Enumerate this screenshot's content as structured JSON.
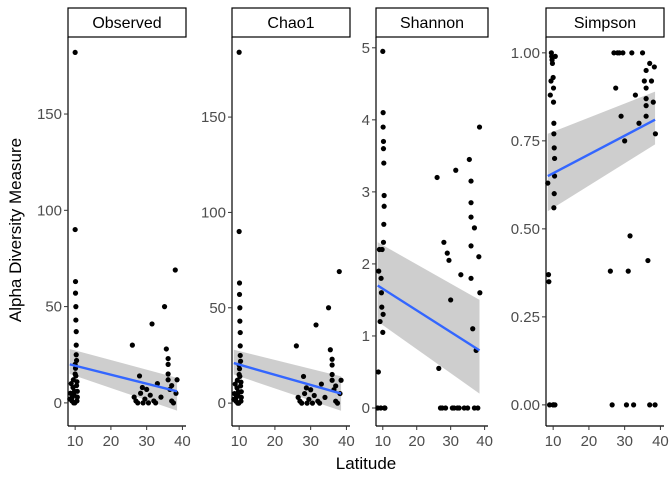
{
  "chart_data": {
    "type": "scatter",
    "xlabel": "Latitude",
    "ylabel": "Alpha Diversity Measure",
    "x_ticks": [
      "10",
      "20",
      "30",
      "40"
    ],
    "colors": {
      "points": "#000000",
      "fit_line": "#3366FF",
      "ci_band": "#bdbdbd",
      "strip_fill": "#ffffff"
    },
    "panels": [
      {
        "name": "Observed",
        "xlim": [
          8,
          41
        ],
        "ylim": [
          -12,
          190
        ],
        "y_ticks": [
          0,
          50,
          100,
          150
        ],
        "y_tick_labels": [
          "0",
          "50",
          "100",
          "150"
        ],
        "points": [
          [
            8.5,
            2
          ],
          [
            8.7,
            5
          ],
          [
            8.9,
            10
          ],
          [
            9.1,
            1
          ],
          [
            9.2,
            3
          ],
          [
            9.4,
            8
          ],
          [
            9.5,
            12
          ],
          [
            9.6,
            0
          ],
          [
            9.7,
            4
          ],
          [
            9.8,
            6
          ],
          [
            10.0,
            15
          ],
          [
            10.0,
            182
          ],
          [
            10.0,
            90
          ],
          [
            10.1,
            63
          ],
          [
            10.1,
            57
          ],
          [
            10.2,
            50
          ],
          [
            10.2,
            43
          ],
          [
            10.3,
            37
          ],
          [
            10.3,
            30
          ],
          [
            10.4,
            22
          ],
          [
            10.1,
            18
          ],
          [
            10.2,
            14
          ],
          [
            10.4,
            9
          ],
          [
            10.5,
            1
          ],
          [
            10.6,
            3
          ],
          [
            10.6,
            6
          ],
          [
            10.0,
            20
          ],
          [
            9.9,
            0
          ],
          [
            10.3,
            25
          ],
          [
            10.5,
            11
          ],
          [
            26,
            30
          ],
          [
            26.5,
            3
          ],
          [
            27,
            1
          ],
          [
            27.5,
            0
          ],
          [
            28,
            14
          ],
          [
            28.3,
            5
          ],
          [
            28.8,
            8
          ],
          [
            29,
            0
          ],
          [
            29.5,
            2
          ],
          [
            30,
            7
          ],
          [
            30.5,
            0
          ],
          [
            31,
            4
          ],
          [
            31.5,
            41
          ],
          [
            32,
            1
          ],
          [
            32.5,
            0
          ],
          [
            33,
            10
          ],
          [
            34,
            3
          ],
          [
            35,
            50
          ],
          [
            35.5,
            28
          ],
          [
            36,
            23
          ],
          [
            36,
            20
          ],
          [
            36,
            15
          ],
          [
            36,
            12
          ],
          [
            36.5,
            7
          ],
          [
            37,
            9
          ],
          [
            37,
            1
          ],
          [
            37.5,
            0
          ],
          [
            38,
            69
          ],
          [
            38.5,
            12
          ],
          [
            38.2,
            5
          ]
        ],
        "fit": {
          "x": [
            8.5,
            38.5
          ],
          "y": [
            20,
            6
          ]
        },
        "ci_band": {
          "x": [
            8.5,
            38.5
          ],
          "lower": [
            15,
            -4
          ],
          "upper": [
            28,
            13
          ]
        }
      },
      {
        "name": "Chao1",
        "xlim": [
          8,
          41
        ],
        "ylim": [
          -12,
          192
        ],
        "y_ticks": [
          0,
          50,
          100,
          150
        ],
        "y_tick_labels": [
          "0",
          "50",
          "100",
          "150"
        ],
        "points": [
          [
            8.5,
            2
          ],
          [
            8.7,
            5
          ],
          [
            8.9,
            10
          ],
          [
            9.1,
            1
          ],
          [
            9.2,
            3
          ],
          [
            9.4,
            8
          ],
          [
            9.5,
            12
          ],
          [
            9.6,
            0
          ],
          [
            9.7,
            4
          ],
          [
            9.8,
            6
          ],
          [
            10.0,
            15
          ],
          [
            10.0,
            184
          ],
          [
            10.0,
            90
          ],
          [
            10.1,
            63
          ],
          [
            10.1,
            57
          ],
          [
            10.2,
            50
          ],
          [
            10.2,
            43
          ],
          [
            10.3,
            37
          ],
          [
            10.3,
            30
          ],
          [
            10.4,
            22
          ],
          [
            10.1,
            18
          ],
          [
            10.2,
            14
          ],
          [
            10.4,
            9
          ],
          [
            10.5,
            1
          ],
          [
            10.6,
            3
          ],
          [
            10.6,
            6
          ],
          [
            10.0,
            20
          ],
          [
            9.9,
            0
          ],
          [
            10.3,
            25
          ],
          [
            10.5,
            11
          ],
          [
            26,
            30
          ],
          [
            26.5,
            3
          ],
          [
            27,
            1
          ],
          [
            27.5,
            0
          ],
          [
            28,
            14
          ],
          [
            28.3,
            5
          ],
          [
            28.8,
            8
          ],
          [
            29,
            0
          ],
          [
            29.5,
            2
          ],
          [
            30,
            7
          ],
          [
            30.5,
            0
          ],
          [
            31,
            4
          ],
          [
            31.5,
            41
          ],
          [
            32,
            1
          ],
          [
            32.5,
            0
          ],
          [
            33,
            10
          ],
          [
            34,
            3
          ],
          [
            35,
            50
          ],
          [
            35.5,
            28
          ],
          [
            36,
            23
          ],
          [
            36,
            20
          ],
          [
            36,
            15
          ],
          [
            36,
            12
          ],
          [
            36.5,
            7
          ],
          [
            37,
            9
          ],
          [
            37,
            1
          ],
          [
            37.5,
            0
          ],
          [
            38,
            69
          ],
          [
            38.5,
            12
          ],
          [
            38.2,
            5
          ]
        ],
        "fit": {
          "x": [
            8.5,
            38.5
          ],
          "y": [
            21,
            5
          ]
        },
        "ci_band": {
          "x": [
            8.5,
            38.5
          ],
          "lower": [
            15,
            -4
          ],
          "upper": [
            28,
            14
          ]
        }
      },
      {
        "name": "Shannon",
        "xlim": [
          8,
          41
        ],
        "ylim": [
          -0.25,
          5.15
        ],
        "y_ticks": [
          0,
          1,
          2,
          3,
          4,
          5
        ],
        "y_tick_labels": [
          "0",
          "1",
          "2",
          "3",
          "4",
          "5"
        ],
        "points": [
          [
            8.5,
            0
          ],
          [
            8.7,
            0.5
          ],
          [
            8.8,
            1.9
          ],
          [
            9,
            2.2
          ],
          [
            9.2,
            1.2
          ],
          [
            9.4,
            0
          ],
          [
            9.5,
            1.8
          ],
          [
            9.6,
            1.6
          ],
          [
            9.7,
            1.4
          ],
          [
            9.8,
            2.2
          ],
          [
            10,
            4.95
          ],
          [
            10.1,
            4.1
          ],
          [
            10.1,
            3.9
          ],
          [
            10.2,
            3.7
          ],
          [
            10.2,
            3.6
          ],
          [
            10.3,
            3.4
          ],
          [
            10.4,
            2.95
          ],
          [
            10.4,
            2.8
          ],
          [
            10.3,
            2.55
          ],
          [
            10.2,
            2.3
          ],
          [
            10.1,
            1.3
          ],
          [
            10,
            1.05
          ],
          [
            10.5,
            0
          ],
          [
            10.6,
            0
          ],
          [
            10.6,
            0
          ],
          [
            26,
            3.2
          ],
          [
            26.5,
            0.55
          ],
          [
            27,
            0
          ],
          [
            27.5,
            0
          ],
          [
            28,
            2.3
          ],
          [
            28.5,
            0
          ],
          [
            29,
            2.15
          ],
          [
            29.5,
            2.05
          ],
          [
            30,
            1.5
          ],
          [
            30.5,
            0
          ],
          [
            31,
            0
          ],
          [
            31.5,
            3.3
          ],
          [
            32,
            0
          ],
          [
            32.5,
            0
          ],
          [
            33,
            1.85
          ],
          [
            34,
            0
          ],
          [
            35,
            0
          ],
          [
            35.5,
            3.45
          ],
          [
            36,
            3.15
          ],
          [
            36,
            2.85
          ],
          [
            36,
            2.65
          ],
          [
            36,
            2.25
          ],
          [
            36,
            1.8
          ],
          [
            36.5,
            1.1
          ],
          [
            37,
            2.5
          ],
          [
            37,
            0
          ],
          [
            37.5,
            0.8
          ],
          [
            38,
            0
          ],
          [
            38.5,
            3.9
          ],
          [
            38.3,
            2.1
          ],
          [
            38.6,
            1.6
          ]
        ],
        "fit": {
          "x": [
            8.5,
            38.5
          ],
          "y": [
            1.7,
            0.8
          ]
        },
        "ci_band": {
          "x": [
            8.5,
            38.5
          ],
          "lower": [
            1.2,
            0.2
          ],
          "upper": [
            2.3,
            1.5
          ]
        }
      },
      {
        "name": "Simpson",
        "xlim": [
          8,
          41
        ],
        "ylim": [
          -0.06,
          1.045
        ],
        "y_ticks": [
          0,
          0.25,
          0.5,
          0.75,
          1
        ],
        "y_tick_labels": [
          "0.00",
          "0.25",
          "0.50",
          "0.75",
          "1.00"
        ],
        "points": [
          [
            8.5,
            0.63
          ],
          [
            8.7,
            0.37
          ],
          [
            8.8,
            0.35
          ],
          [
            9,
            0
          ],
          [
            9.2,
            0.88
          ],
          [
            9.4,
            0.92
          ],
          [
            9.5,
            1
          ],
          [
            9.6,
            0.99
          ],
          [
            9.7,
            0.98
          ],
          [
            9.8,
            0.97
          ],
          [
            10,
            0.93
          ],
          [
            10.1,
            0.9
          ],
          [
            10.1,
            0.86
          ],
          [
            10.2,
            0.8
          ],
          [
            10.2,
            0.77
          ],
          [
            10.3,
            0.73
          ],
          [
            10.4,
            0.7
          ],
          [
            10.4,
            0.65
          ],
          [
            10.3,
            0.6
          ],
          [
            10.2,
            0.56
          ],
          [
            10.1,
            0
          ],
          [
            10,
            0
          ],
          [
            10.5,
            0
          ],
          [
            10.6,
            0.99
          ],
          [
            26,
            0.38
          ],
          [
            26.5,
            0
          ],
          [
            27,
            1
          ],
          [
            27.5,
            0.9
          ],
          [
            28,
            1
          ],
          [
            28.5,
            1
          ],
          [
            29,
            0.82
          ],
          [
            29.5,
            1
          ],
          [
            30,
            0.75
          ],
          [
            30.5,
            0
          ],
          [
            31,
            0.38
          ],
          [
            31.5,
            0.48
          ],
          [
            32,
            1
          ],
          [
            32.5,
            0
          ],
          [
            33,
            0.88
          ],
          [
            34,
            0.8
          ],
          [
            35,
            1
          ],
          [
            35.5,
            0.92
          ],
          [
            36,
            0.9
          ],
          [
            36,
            0.87
          ],
          [
            36,
            0.85
          ],
          [
            36,
            0.82
          ],
          [
            36,
            0.95
          ],
          [
            36.5,
            0.41
          ],
          [
            37,
            0.97
          ],
          [
            37,
            0
          ],
          [
            37.5,
            0.92
          ],
          [
            38,
            0.86
          ],
          [
            38.5,
            0
          ],
          [
            38.3,
            0.96
          ],
          [
            38.6,
            0.77
          ]
        ],
        "fit": {
          "x": [
            8.5,
            38.5
          ],
          "y": [
            0.65,
            0.81
          ]
        },
        "ci_band": {
          "x": [
            8.5,
            38.5
          ],
          "lower": [
            0.55,
            0.74
          ],
          "upper": [
            0.77,
            0.89
          ]
        }
      }
    ]
  }
}
